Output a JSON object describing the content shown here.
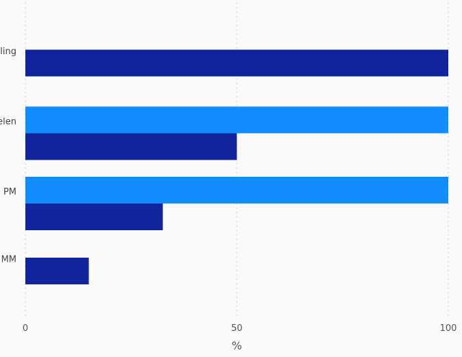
{
  "chart_data": {
    "type": "bar",
    "orientation": "horizontal",
    "categories": [
      "ling",
      "elen",
      "PM",
      "MM"
    ],
    "series": [
      {
        "color": "#118dff",
        "values": [
          null,
          100,
          100,
          null
        ]
      },
      {
        "color": "#12239e",
        "values": [
          100,
          50,
          32.5,
          15
        ]
      }
    ],
    "xlabel": "%",
    "xlim": [
      0,
      100
    ],
    "xticks": [
      "0",
      "50",
      "100"
    ],
    "grid": true
  }
}
